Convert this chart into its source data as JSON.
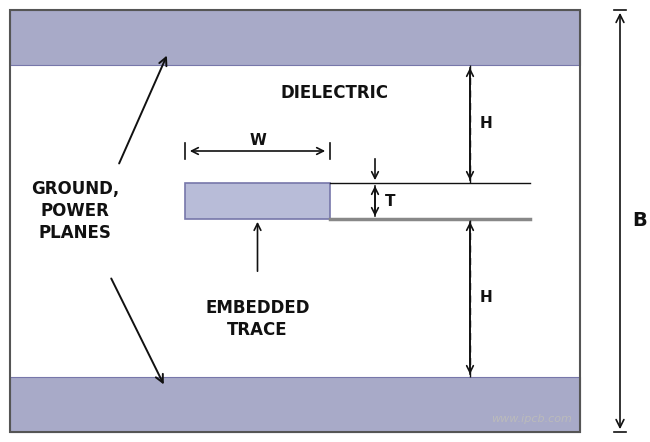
{
  "fig_width": 6.5,
  "fig_height": 4.42,
  "bg_color": "#ffffff",
  "plane_color": "#a8aac8",
  "plane_border_color": "#7777aa",
  "trace_fill_color": "#b8bcd8",
  "trace_border_color": "#7777aa",
  "line_color": "#111111",
  "watermark_color": "#bbbbbb",
  "watermark_text": "www.ipcb.com",
  "labels": {
    "dielectric": "DIELECTRIC",
    "ground": "GROUND,\nPOWER\nPLANES",
    "embedded": "EMBEDDED\nTRACE",
    "W": "W",
    "T": "T",
    "H_upper": "H",
    "H_lower": "H",
    "B": "B"
  },
  "font_size_main": 11,
  "font_size_dim": 11,
  "font_size_watermark": 8
}
